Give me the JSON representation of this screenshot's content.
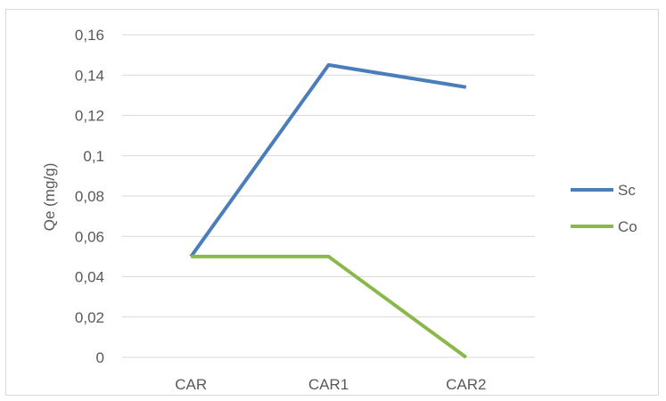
{
  "chart_data": {
    "type": "line",
    "title": "",
    "xlabel": "",
    "ylabel": "Qe (mg/g)",
    "categories": [
      "CAR",
      "CAR1",
      "CAR2"
    ],
    "y_ticks": [
      "0",
      "0,02",
      "0,04",
      "0,06",
      "0,08",
      "0,1",
      "0,12",
      "0,14",
      "0,16"
    ],
    "ylim": [
      0,
      0.16
    ],
    "grid": true,
    "legend_position": "right",
    "series": [
      {
        "name": "Sc",
        "color": "#4a7ebb",
        "values": [
          0.05,
          0.145,
          0.134
        ]
      },
      {
        "name": "Co",
        "color": "#8bb84a",
        "values": [
          0.05,
          0.05,
          0.0
        ]
      }
    ]
  }
}
